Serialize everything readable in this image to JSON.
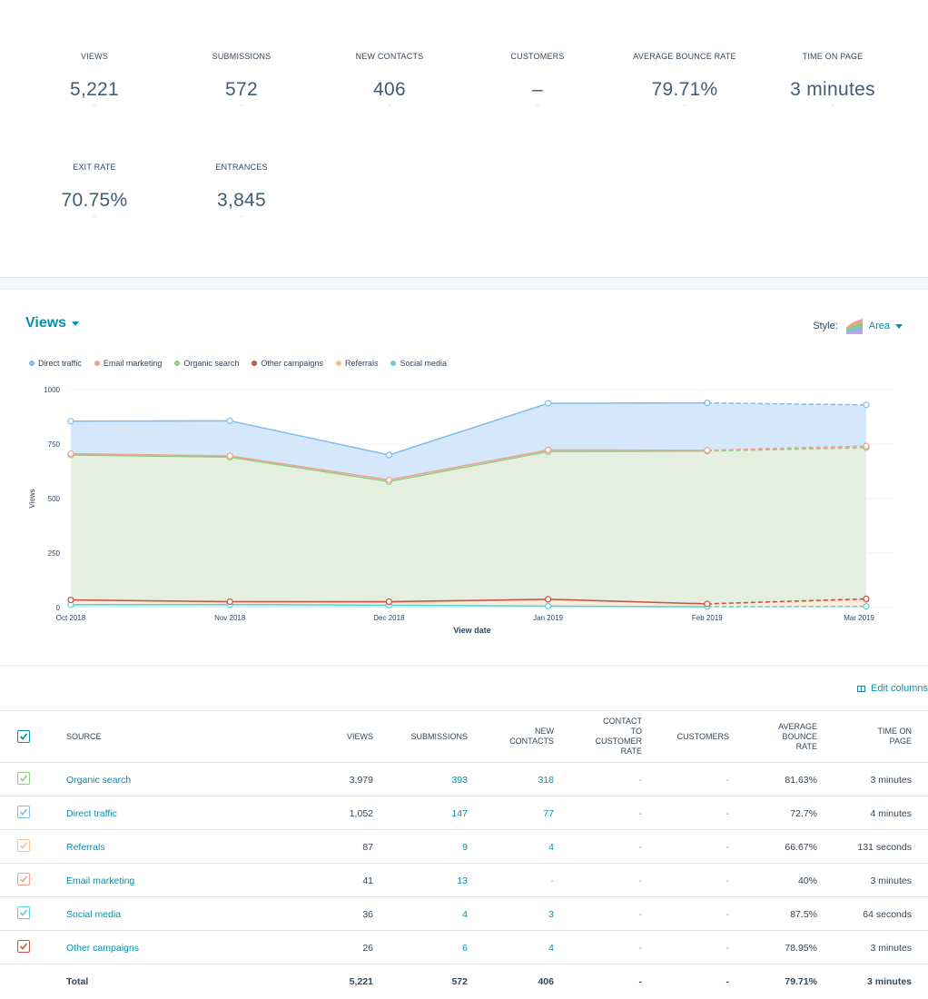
{
  "kpis": [
    {
      "label": "VIEWS",
      "value": "5,221",
      "sub": "-"
    },
    {
      "label": "SUBMISSIONS",
      "value": "572",
      "sub": "-"
    },
    {
      "label": "NEW CONTACTS",
      "value": "406",
      "sub": "-"
    },
    {
      "label": "CUSTOMERS",
      "value": "–",
      "sub": "-"
    },
    {
      "label": "AVERAGE BOUNCE RATE",
      "value": "79.71%",
      "sub": "-"
    },
    {
      "label": "TIME ON PAGE",
      "value": "3 minutes",
      "sub": "-"
    },
    {
      "label": "EXIT RATE",
      "value": "70.75%",
      "sub": "-"
    },
    {
      "label": "ENTRANCES",
      "value": "3,845",
      "sub": "-"
    }
  ],
  "chart_header": {
    "metric": "Views",
    "style_label": "Style:",
    "style_value": "Area"
  },
  "chart_data": {
    "type": "area",
    "xlabel": "View date",
    "ylabel": "Views",
    "ylim": [
      0,
      1000
    ],
    "yticks": [
      "0",
      "250",
      "500",
      "750",
      "1000"
    ],
    "categories": [
      "Oct 2018",
      "Nov 2018",
      "Dec 2018",
      "Jan 2019",
      "Feb 2019",
      "Mar 2019"
    ],
    "projected_from_index": 4,
    "stacked": true,
    "grid": true,
    "legend_position": "top-left",
    "series": [
      {
        "name": "Direct traffic",
        "color": "#7fbbec",
        "fill": "#d5e8fb",
        "cumulative": [
          855,
          857,
          700,
          937,
          939,
          930
        ]
      },
      {
        "name": "Email marketing",
        "color": "#f2a090",
        "fill": "#fbe1da",
        "cumulative": [
          706,
          696,
          586,
          723,
          722,
          741
        ]
      },
      {
        "name": "Organic search",
        "color": "#8fcc82",
        "fill": "#e4efdf",
        "cumulative": [
          700,
          690,
          578,
          716,
          718,
          734
        ]
      },
      {
        "name": "Other campaigns",
        "color": "#c0554a",
        "fill": "#f6d9d4",
        "cumulative": [
          35,
          27,
          27,
          38,
          17,
          40
        ]
      },
      {
        "name": "Referrals",
        "color": "#f5c48a",
        "fill": "#fdecd7",
        "cumulative": [
          35,
          26,
          24,
          38,
          17,
          36
        ]
      },
      {
        "name": "Social media",
        "color": "#5fd0dc",
        "fill": "#d3f2f5",
        "cumulative": [
          13,
          14,
          11,
          7,
          4,
          6
        ]
      }
    ]
  },
  "table": {
    "edit_columns": "Edit columns",
    "headers": {
      "source": "SOURCE",
      "views": "VIEWS",
      "submissions": "SUBMISSIONS",
      "new_contacts": [
        "NEW",
        "CONTACTS"
      ],
      "ctc_rate": [
        "CONTACT",
        "TO",
        "CUSTOMER",
        "RATE"
      ],
      "customers": "CUSTOMERS",
      "bounce": [
        "AVERAGE",
        "BOUNCE",
        "RATE"
      ],
      "time_on_page": [
        "TIME ON",
        "PAGE"
      ]
    },
    "header_check_color": "#0091ae",
    "rows": [
      {
        "source": "Organic search",
        "color": "#8fcc82",
        "views": "3,979",
        "submissions": "393",
        "new_contacts": "318",
        "ctc_rate": "-",
        "customers": "-",
        "bounce": "81.63%",
        "time": "3 minutes"
      },
      {
        "source": "Direct traffic",
        "color": "#7fbbec",
        "views": "1,052",
        "submissions": "147",
        "new_contacts": "77",
        "ctc_rate": "-",
        "customers": "-",
        "bounce": "72.7%",
        "time": "4 minutes"
      },
      {
        "source": "Referrals",
        "color": "#f5c48a",
        "views": "87",
        "submissions": "9",
        "new_contacts": "4",
        "ctc_rate": "-",
        "customers": "-",
        "bounce": "66.67%",
        "time": "131 seconds"
      },
      {
        "source": "Email marketing",
        "color": "#f2a090",
        "views": "41",
        "submissions": "13",
        "new_contacts": "-",
        "ctc_rate": "-",
        "customers": "-",
        "bounce": "40%",
        "time": "3 minutes"
      },
      {
        "source": "Social media",
        "color": "#5fd0dc",
        "views": "36",
        "submissions": "4",
        "new_contacts": "3",
        "ctc_rate": "-",
        "customers": "-",
        "bounce": "87.5%",
        "time": "64 seconds"
      },
      {
        "source": "Other campaigns",
        "color": "#c0554a",
        "views": "26",
        "submissions": "6",
        "new_contacts": "4",
        "ctc_rate": "-",
        "customers": "-",
        "bounce": "78.95%",
        "time": "3 minutes"
      }
    ],
    "total": {
      "source": "Total",
      "views": "5,221",
      "submissions": "572",
      "new_contacts": "406",
      "ctc_rate": "-",
      "customers": "-",
      "bounce": "79.71%",
      "time": "3 minutes"
    }
  }
}
